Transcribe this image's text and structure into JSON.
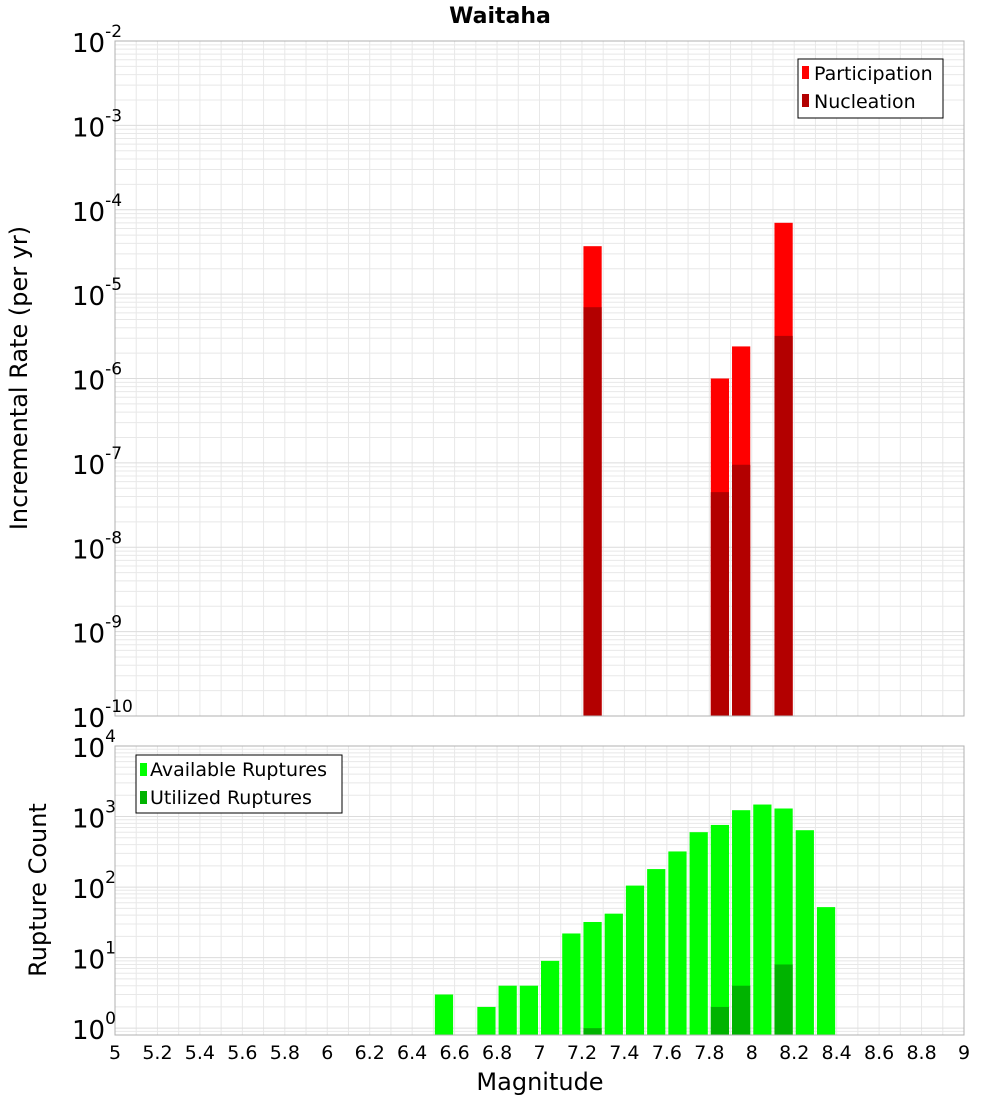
{
  "chart_data": [
    {
      "type": "bar",
      "title": "Waitaha",
      "xlabel": "Magnitude",
      "ylabel": "Incremental Rate (per yr)",
      "yscale": "log",
      "xlim": [
        5,
        9
      ],
      "ylim": [
        1e-10,
        0.01
      ],
      "grid": true,
      "bin_width": 0.1,
      "legend_position": "top-right",
      "series": [
        {
          "name": "Participation",
          "color": "#ff0000",
          "x": [
            7.25,
            7.85,
            7.95,
            8.15
          ],
          "values": [
            3.7e-05,
            1e-06,
            2.4e-06,
            7e-05
          ]
        },
        {
          "name": "Nucleation",
          "color": "#b30000",
          "x": [
            7.25,
            7.85,
            7.95,
            8.15
          ],
          "values": [
            7e-06,
            4.5e-08,
            9.5e-08,
            3.2e-06
          ]
        }
      ],
      "y_ticks": [
        {
          "base": "10",
          "exp": "-10"
        },
        {
          "base": "10",
          "exp": "-9"
        },
        {
          "base": "10",
          "exp": "-8"
        },
        {
          "base": "10",
          "exp": "-7"
        },
        {
          "base": "10",
          "exp": "-6"
        },
        {
          "base": "10",
          "exp": "-5"
        },
        {
          "base": "10",
          "exp": "-4"
        },
        {
          "base": "10",
          "exp": "-3"
        },
        {
          "base": "10",
          "exp": "-2"
        }
      ]
    },
    {
      "type": "bar",
      "title": "",
      "xlabel": "Magnitude",
      "ylabel": "Rupture Count",
      "yscale": "log",
      "xlim": [
        5,
        9
      ],
      "ylim": [
        0.8,
        10000
      ],
      "grid": true,
      "bin_width": 0.1,
      "legend_position": "top-left",
      "series": [
        {
          "name": "Available Ruptures",
          "color": "#00ff00",
          "x": [
            6.55,
            6.75,
            6.85,
            6.95,
            7.05,
            7.15,
            7.25,
            7.35,
            7.45,
            7.55,
            7.65,
            7.75,
            7.85,
            7.95,
            8.05,
            8.15,
            8.25,
            8.35
          ],
          "values": [
            3,
            2,
            4,
            4,
            9,
            22,
            32,
            42,
            105,
            180,
            320,
            600,
            760,
            1230,
            1480,
            1300,
            640,
            52
          ]
        },
        {
          "name": "Utilized Ruptures",
          "color": "#00b300",
          "x": [
            7.25,
            7.85,
            7.95,
            8.15
          ],
          "values": [
            1,
            2,
            4,
            8
          ]
        }
      ],
      "y_ticks": [
        {
          "base": "10",
          "exp": "0"
        },
        {
          "base": "10",
          "exp": "1"
        },
        {
          "base": "10",
          "exp": "2"
        },
        {
          "base": "10",
          "exp": "3"
        },
        {
          "base": "10",
          "exp": "4"
        }
      ]
    }
  ],
  "x_ticks": [
    "5",
    "5.2",
    "5.4",
    "5.6",
    "5.8",
    "6",
    "6.2",
    "6.4",
    "6.6",
    "6.8",
    "7",
    "7.2",
    "7.4",
    "7.6",
    "7.8",
    "8",
    "8.2",
    "8.4",
    "8.6",
    "8.8",
    "9"
  ],
  "x_tick_values": [
    5,
    5.2,
    5.4,
    5.6,
    5.8,
    6,
    6.2,
    6.4,
    6.6,
    6.8,
    7,
    7.2,
    7.4,
    7.6,
    7.8,
    8,
    8.2,
    8.4,
    8.6,
    8.8,
    9
  ],
  "colors": {
    "grid": "#e8e8e8",
    "frame": "#b0b0b0"
  }
}
